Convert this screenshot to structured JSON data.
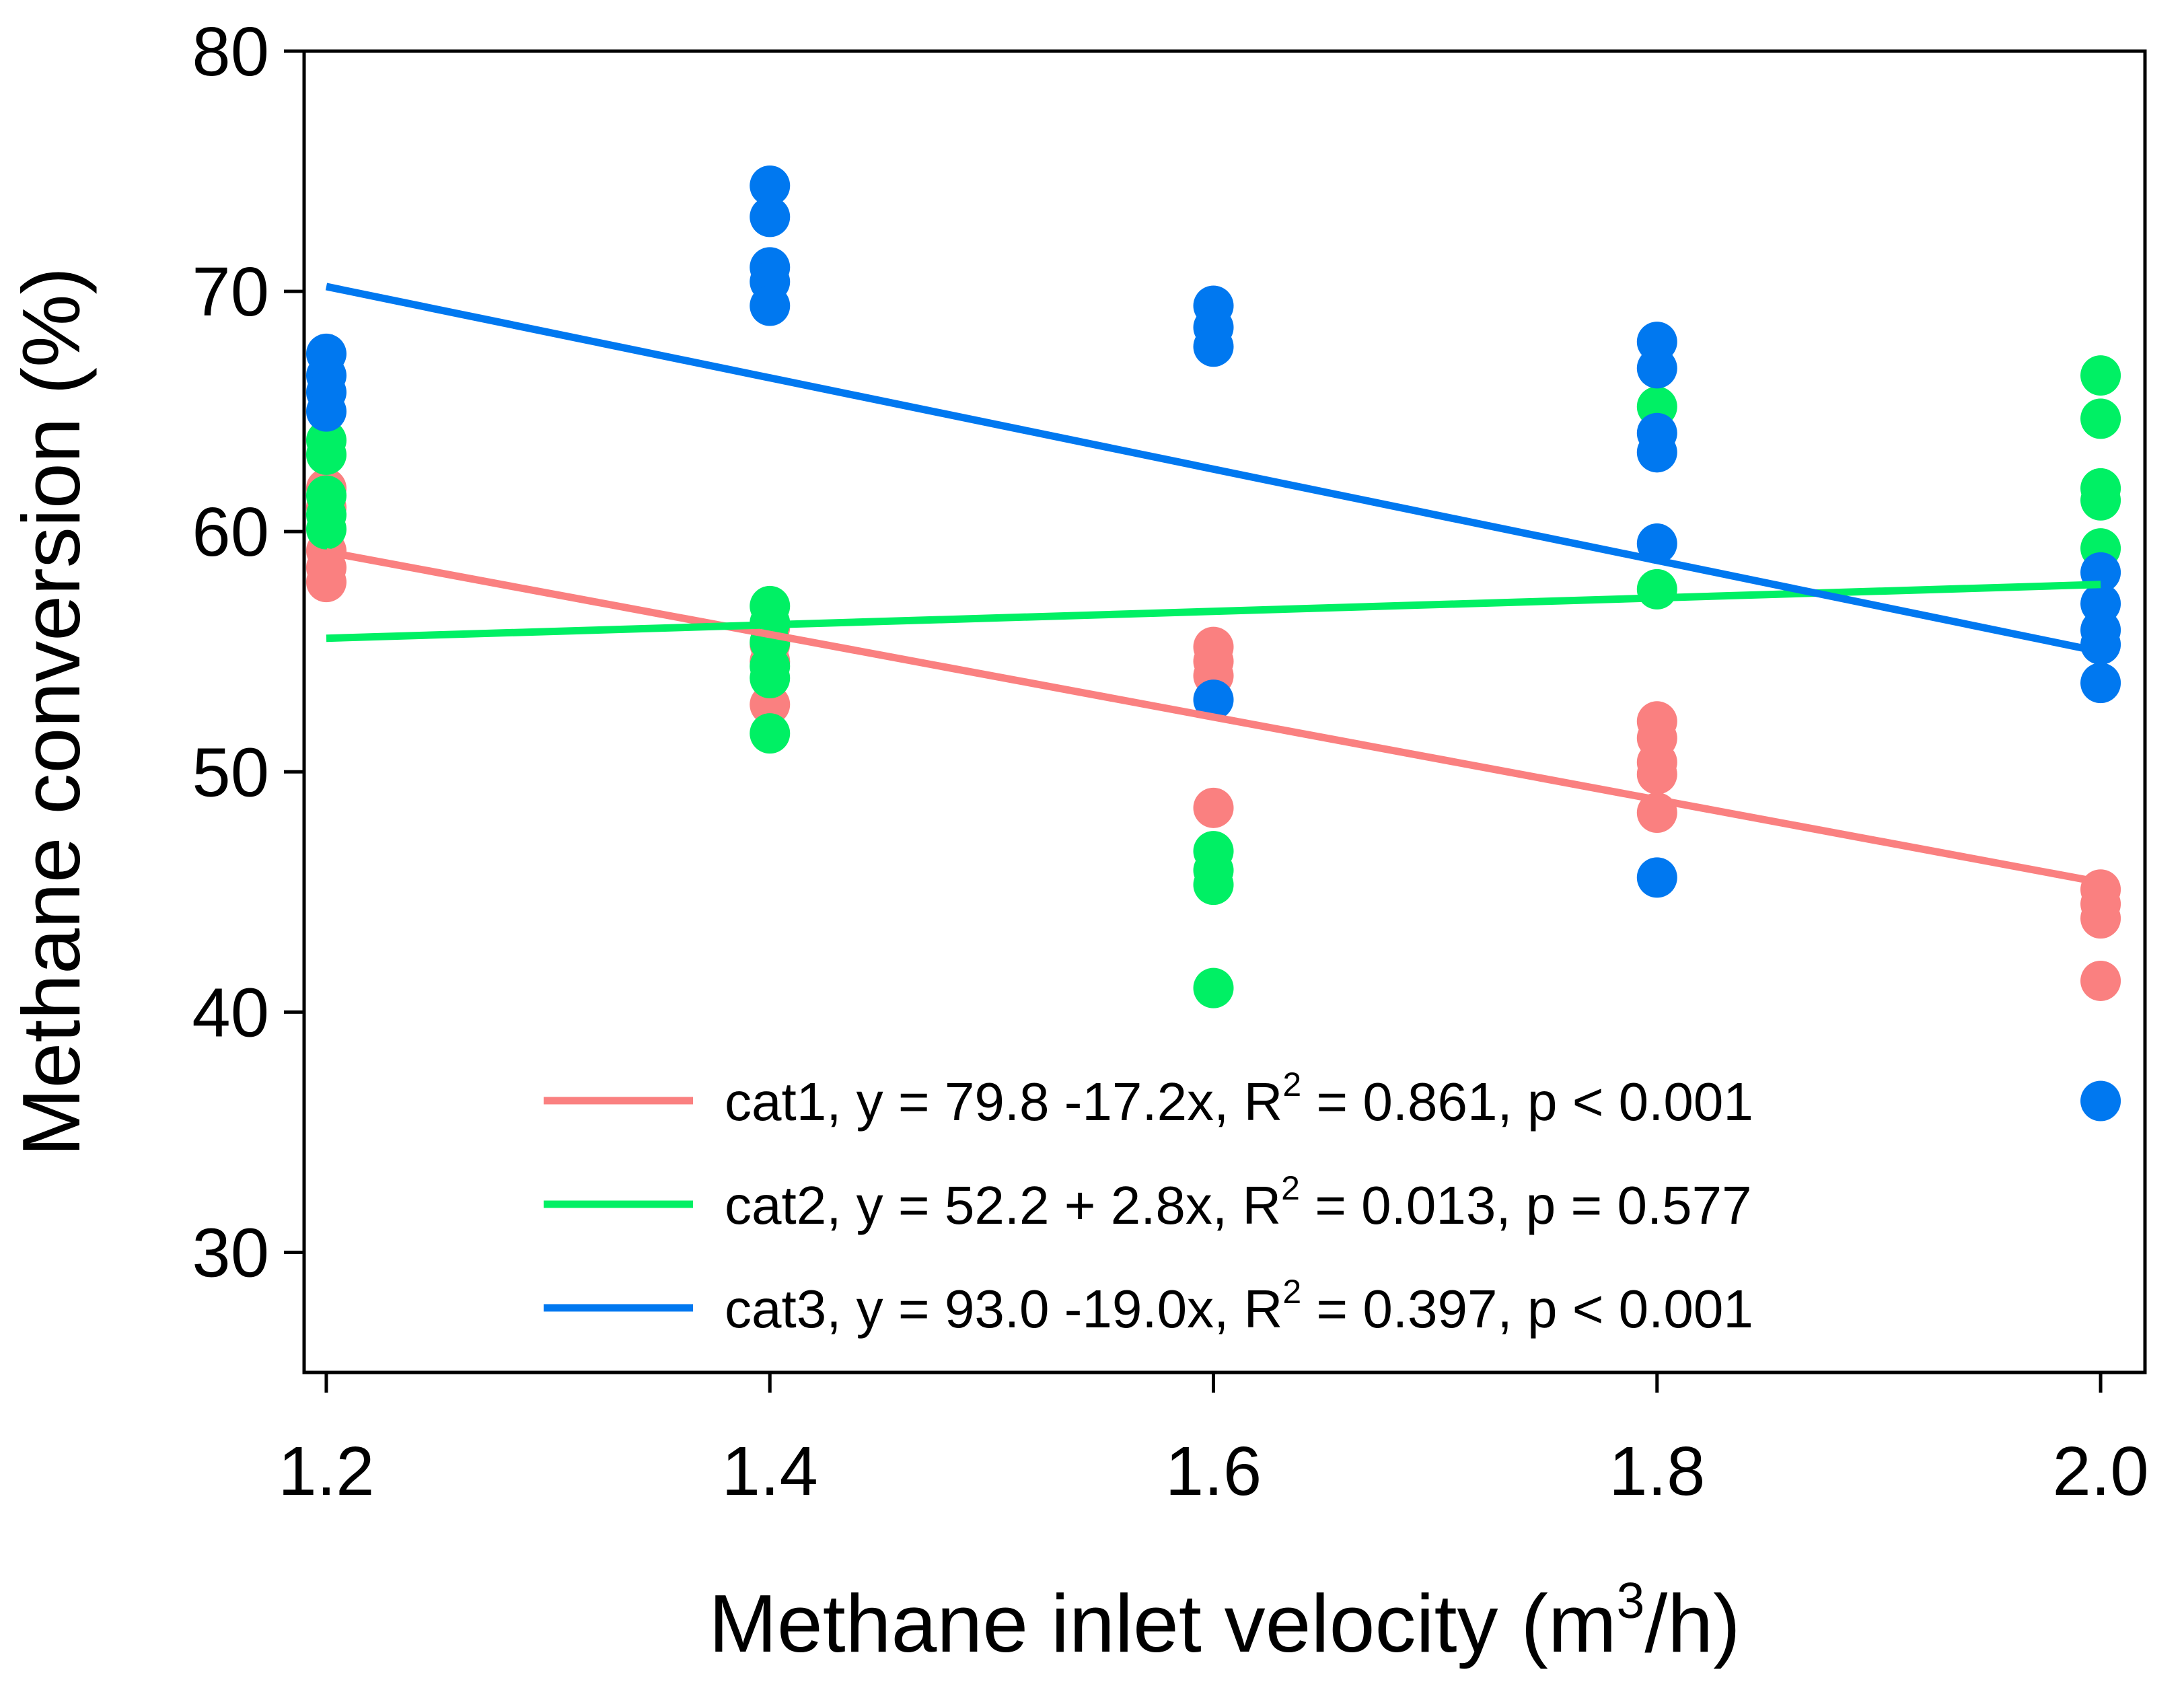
{
  "chart_data": {
    "type": "scatter",
    "title": "",
    "xlabel": "Methane inlet velocity (m",
    "xlabel_sup": "3",
    "xlabel_end": "/h)",
    "ylabel": "Methane conversion (%)",
    "xlim": [
      1.19,
      2.02
    ],
    "ylim": [
      25,
      80
    ],
    "x_ticks": [
      1.2,
      1.4,
      1.6,
      1.8,
      2.0
    ],
    "x_tick_labels": [
      "1.2",
      "1.4",
      "1.6",
      "1.8",
      "2.0"
    ],
    "y_ticks": [
      30,
      40,
      50,
      60,
      70,
      80
    ],
    "y_tick_labels": [
      "30",
      "40",
      "50",
      "60",
      "70",
      "80"
    ],
    "grid": false,
    "legend_position": "bottom-right",
    "series": [
      {
        "name": "cat1",
        "color": "#fa8080",
        "intercept": 79.8,
        "slope": -17.2,
        "fit_range": [
          1.2,
          2.0
        ],
        "legend_pre": "cat1, y = 79.8 -17.2x, R",
        "legend_post": " = 0.861, p < 0.001",
        "points": [
          {
            "x": 1.2,
            "y": 61.8
          },
          {
            "x": 1.2,
            "y": 61.0
          },
          {
            "x": 1.2,
            "y": 59.2
          },
          {
            "x": 1.2,
            "y": 58.5
          },
          {
            "x": 1.2,
            "y": 57.9
          },
          {
            "x": 1.4,
            "y": 56.0
          },
          {
            "x": 1.4,
            "y": 55.3
          },
          {
            "x": 1.4,
            "y": 54.6
          },
          {
            "x": 1.4,
            "y": 52.8
          },
          {
            "x": 1.6,
            "y": 55.2
          },
          {
            "x": 1.6,
            "y": 54.6
          },
          {
            "x": 1.6,
            "y": 54.0
          },
          {
            "x": 1.6,
            "y": 48.5
          },
          {
            "x": 1.8,
            "y": 52.1
          },
          {
            "x": 1.8,
            "y": 51.4
          },
          {
            "x": 1.8,
            "y": 50.4
          },
          {
            "x": 1.8,
            "y": 49.9
          },
          {
            "x": 1.8,
            "y": 48.3
          },
          {
            "x": 2.0,
            "y": 45.1
          },
          {
            "x": 2.0,
            "y": 44.5
          },
          {
            "x": 2.0,
            "y": 43.9
          },
          {
            "x": 2.0,
            "y": 41.3
          }
        ]
      },
      {
        "name": "cat2",
        "color": "#00f064",
        "intercept": 52.2,
        "slope": 2.8,
        "fit_range": [
          1.2,
          2.0
        ],
        "legend_pre": "cat2, y = 52.2 + 2.8x, R",
        "legend_post": " = 0.013, p = 0.577",
        "points": [
          {
            "x": 1.2,
            "y": 63.8
          },
          {
            "x": 1.2,
            "y": 63.2
          },
          {
            "x": 1.2,
            "y": 61.5
          },
          {
            "x": 1.2,
            "y": 60.7
          },
          {
            "x": 1.2,
            "y": 60.1
          },
          {
            "x": 1.4,
            "y": 56.9
          },
          {
            "x": 1.4,
            "y": 56.2
          },
          {
            "x": 1.4,
            "y": 55.4
          },
          {
            "x": 1.4,
            "y": 54.4
          },
          {
            "x": 1.4,
            "y": 53.9
          },
          {
            "x": 1.4,
            "y": 51.6
          },
          {
            "x": 1.6,
            "y": 46.7
          },
          {
            "x": 1.6,
            "y": 45.9
          },
          {
            "x": 1.6,
            "y": 45.3
          },
          {
            "x": 1.6,
            "y": 41.0
          },
          {
            "x": 1.8,
            "y": 65.2
          },
          {
            "x": 1.8,
            "y": 57.6
          },
          {
            "x": 2.0,
            "y": 66.5
          },
          {
            "x": 2.0,
            "y": 64.7
          },
          {
            "x": 2.0,
            "y": 61.8
          },
          {
            "x": 2.0,
            "y": 61.3
          },
          {
            "x": 2.0,
            "y": 59.3
          }
        ]
      },
      {
        "name": "cat3",
        "color": "#0078f0",
        "intercept": 93.0,
        "slope": -19.0,
        "fit_range": [
          1.2,
          2.0
        ],
        "legend_pre": "cat3, y = 93.0 -19.0x, R",
        "legend_post": " = 0.397, p < 0.001",
        "points": [
          {
            "x": 1.2,
            "y": 67.4
          },
          {
            "x": 1.2,
            "y": 66.5
          },
          {
            "x": 1.2,
            "y": 65.8
          },
          {
            "x": 1.2,
            "y": 65.0
          },
          {
            "x": 1.4,
            "y": 74.4
          },
          {
            "x": 1.4,
            "y": 73.1
          },
          {
            "x": 1.4,
            "y": 71.0
          },
          {
            "x": 1.4,
            "y": 70.4
          },
          {
            "x": 1.4,
            "y": 69.4
          },
          {
            "x": 1.6,
            "y": 69.4
          },
          {
            "x": 1.6,
            "y": 68.5
          },
          {
            "x": 1.6,
            "y": 67.7
          },
          {
            "x": 1.6,
            "y": 53.0
          },
          {
            "x": 1.8,
            "y": 67.9
          },
          {
            "x": 1.8,
            "y": 66.8
          },
          {
            "x": 1.8,
            "y": 64.1
          },
          {
            "x": 1.8,
            "y": 63.3
          },
          {
            "x": 1.8,
            "y": 59.5
          },
          {
            "x": 1.8,
            "y": 45.6
          },
          {
            "x": 2.0,
            "y": 58.3
          },
          {
            "x": 2.0,
            "y": 57.0
          },
          {
            "x": 2.0,
            "y": 55.9
          },
          {
            "x": 2.0,
            "y": 55.3
          },
          {
            "x": 2.0,
            "y": 53.7
          },
          {
            "x": 2.0,
            "y": 36.3
          }
        ]
      }
    ],
    "legend_sup": "2"
  }
}
